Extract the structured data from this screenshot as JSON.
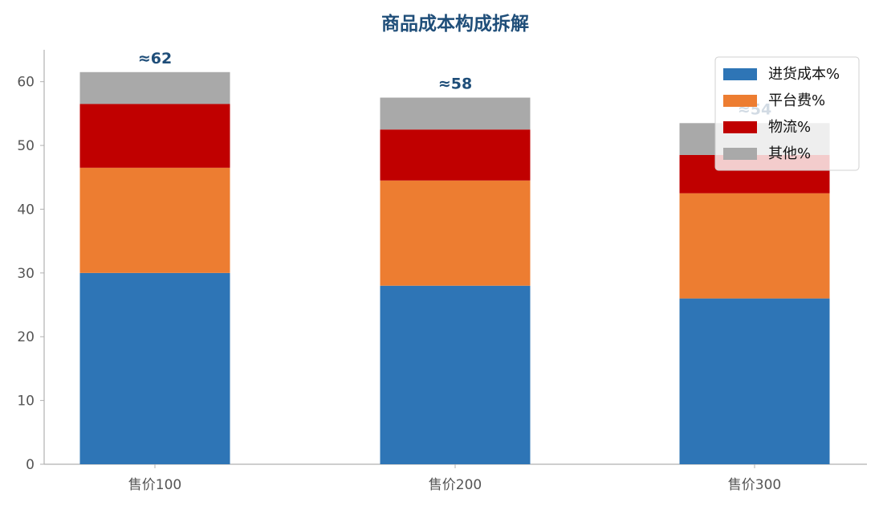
{
  "chart_data": {
    "type": "bar",
    "stacked": true,
    "title": "商品成本构成拆解",
    "xlabel": "",
    "ylabel": "",
    "categories": [
      "售价100",
      "售价200",
      "售价300"
    ],
    "ylim": [
      0,
      65
    ],
    "yticks": [
      0,
      10,
      20,
      30,
      40,
      50,
      60
    ],
    "grid": false,
    "legend_position": "top-right",
    "series": [
      {
        "name": "进货成本%",
        "color": "#2e75b6",
        "values": [
          30,
          28,
          26
        ]
      },
      {
        "name": "平台费%",
        "color": "#ed7d31",
        "values": [
          16.5,
          16.5,
          16.5
        ]
      },
      {
        "name": "物流%",
        "color": "#c00000",
        "values": [
          10,
          8,
          6
        ]
      },
      {
        "name": "其他%",
        "color": "#a9a9a9",
        "values": [
          5,
          5,
          5
        ]
      }
    ],
    "totals_labels": [
      "≈62",
      "≈58",
      "≈54"
    ]
  }
}
